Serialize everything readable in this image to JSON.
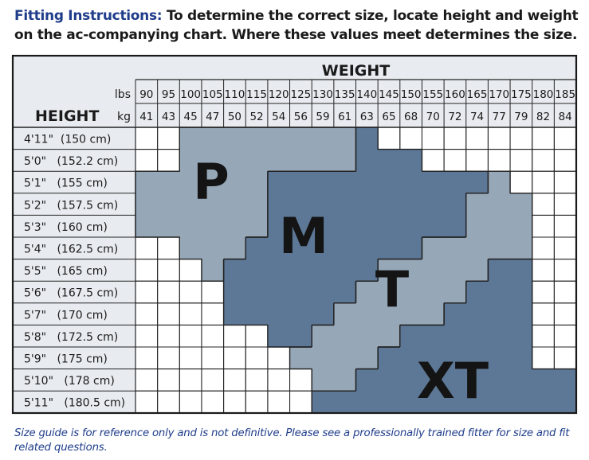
{
  "intro": {
    "lead": "Fitting Instructions:",
    "text": "To determine the correct size, locate height and weight on the ac-companying chart. Where these values meet determines the size."
  },
  "chart_data": {
    "type": "table",
    "title": "WEIGHT",
    "row_header": "HEIGHT",
    "unit_lbs": "lbs",
    "unit_kg": "kg",
    "weights_lbs": [
      "90",
      "95",
      "100",
      "105",
      "110",
      "115",
      "120",
      "125",
      "130",
      "135",
      "140",
      "145",
      "150",
      "155",
      "160",
      "165",
      "170",
      "175",
      "180",
      "185"
    ],
    "weights_kg": [
      "41",
      "43",
      "45",
      "47",
      "50",
      "52",
      "54",
      "56",
      "59",
      "61",
      "63",
      "65",
      "68",
      "70",
      "72",
      "74",
      "77",
      "79",
      "82",
      "84"
    ],
    "heights": [
      "4'11\"  (150 cm)",
      "5'0\"   (152.2 cm)",
      "5'1\"   (155 cm)",
      "5'2\"   (157.5 cm)",
      "5'3\"   (160 cm)",
      "5'4\"   (162.5 cm)",
      "5'5\"   (165 cm)",
      "5'6\"   (167.5 cm)",
      "5'7\"   (170 cm)",
      "5'8\"   (172.5 cm)",
      "5'9\"   (175 cm)",
      "5'10\"   (178 cm)",
      "5'11\"   (180.5 cm)"
    ],
    "sizes": [
      "P",
      "M",
      "T",
      "XT"
    ],
    "size_colors": {
      "P": "#96a7b7",
      "M": "#5d7896",
      "T": "#96a7b7",
      "XT": "#5d7896"
    },
    "grid": [
      "..PPPPPPPPM.........",
      "..PPPPPPPPMMM.......",
      "PPPPPPMMMMMMMMMMT...",
      "PPPPPPMMMMMMMMMTTT..",
      "PPPPPPMMMMMMMMMTTT..",
      "..PPPMMMMMMMMTTTTT..",
      "...PMMMMMMMTTTTTXX..",
      "....MMMMMMTTTTTXXX..",
      "....MMMMMTTTTTXXXX..",
      "......MMTTTTXXXXXX..",
      ".......TTTTXXXXXXX..",
      "........TTXXXXXXXXXX",
      "........XXXXXXXXXXXX"
    ]
  },
  "disclaimer": "Size guide is for reference only and is not definitive. Please see a professionally trained fitter for size and fit related questions.",
  "colors": {
    "frame": "#1a1a1a",
    "grid_line": "#222222",
    "blue_text": "#1f3d8a",
    "header_bg": "#e8ecf0"
  }
}
